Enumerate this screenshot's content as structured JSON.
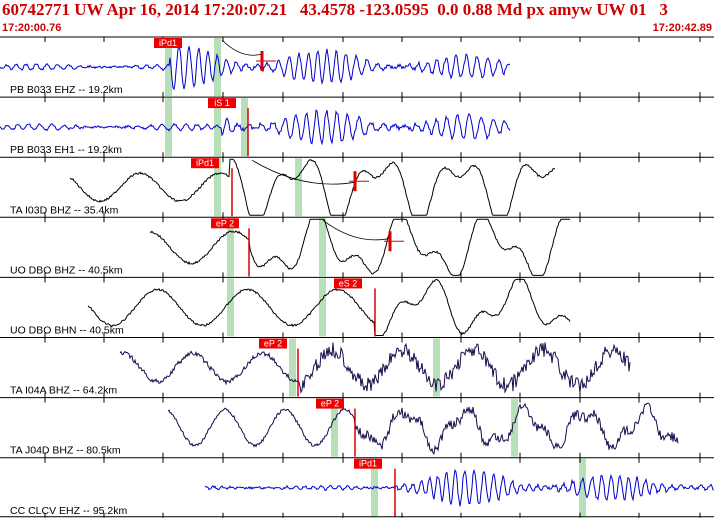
{
  "header": {
    "title": "60742771 UW Apr 16, 2014 17:20:07.21   43.4578 -123.0595  0.0 0.88 Md px amyw UW 01   3",
    "start_time": "17:20:00.76",
    "end_time": "17:20:42.89"
  },
  "colors": {
    "header_text": "#cc0000",
    "trace_blue": "#0000cc",
    "trace_dark": "#1a0a4a",
    "trace_black": "#000000",
    "pick_bg": "#ee0000",
    "window_green": "#b8e0b8"
  },
  "traces": [
    {
      "label": "PB B033 EHZ -- 19.2km",
      "pick": "iPd1",
      "color": "blue"
    },
    {
      "label": "PB B033 EH1 -- 19.2km",
      "pick": "iS 1",
      "color": "blue"
    },
    {
      "label": "TA I03D BHZ -- 35.4km",
      "pick": "iPd1",
      "color": "black"
    },
    {
      "label": "UO DBO BHZ -- 40.5km",
      "pick": "eP 2",
      "color": "black"
    },
    {
      "label": "UO DBO BHN -- 40.5km",
      "pick": "eS 2",
      "color": "black"
    },
    {
      "label": "TA I04A BHZ -- 64.2km",
      "pick": "eP 2",
      "color": "dark"
    },
    {
      "label": "TA J04D BHZ -- 80.5km",
      "pick": "eP 2",
      "color": "dark"
    },
    {
      "label": "CC CLCV EHZ -- 95.2km",
      "pick": "iPd1",
      "color": "blue"
    }
  ]
}
